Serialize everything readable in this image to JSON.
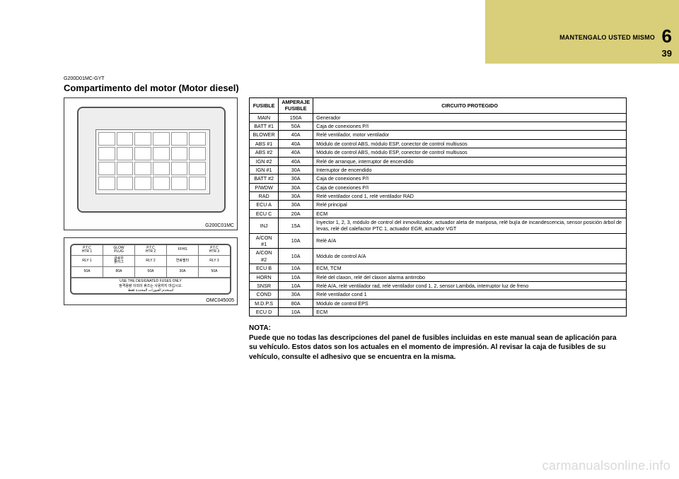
{
  "banner": {
    "chapter": "MANTENGALO USTED MISMO",
    "num": "6",
    "page": "39"
  },
  "code": "G200D01MC-GYT",
  "title": "Compartimento del motor (Motor diesel)",
  "fig1_label": "G200C01MC",
  "fig2_label": "OMC045005",
  "relay": {
    "row1": [
      "P.T.C\nHTR 1",
      "GLOW\nPLUG",
      "P.T.C\nHTR 2",
      "FFHS",
      "P.T.C\nHTR 3"
    ],
    "row2": [
      "RLY 1",
      "글로우\n플러그",
      "RLY 2",
      "연료필터",
      "RLY 3"
    ],
    "row3": [
      "50A",
      "80A",
      "50A",
      "30A",
      "50A"
    ],
    "foot": "USE THE DESIGNATED FUSES ONLY\n정격용량 이외의 휴즈는 사용하지 마십시오.\nاستخدم الفيوزات المحددة فقط"
  },
  "table": {
    "headers": [
      "FUSIBLE",
      "AMPERAJE\nFUSIBLE",
      "CIRCUITO PROTEGIDO"
    ],
    "rows": [
      [
        "MAIN",
        "150A",
        "Generador"
      ],
      [
        "BATT #1",
        "50A",
        "Caja de conexiones P/I"
      ],
      [
        "BLOWER",
        "40A",
        "Relé ventilador, motor ventilador"
      ],
      [
        "ABS #1",
        "40A",
        "Módulo de control ABS, módulo ESP, conector de control multiusos"
      ],
      [
        "ABS #2",
        "40A",
        "Módulo de control ABS, módulo ESP, conector de control multiusos"
      ],
      [
        "IGN #2",
        "40A",
        "Relé de arranque, interruptor de encendido"
      ],
      [
        "IGN #1",
        "30A",
        "Interruptor de encendido"
      ],
      [
        "BATT #2",
        "30A",
        "Caja de conexiones P/I"
      ],
      [
        "P/WDW",
        "30A",
        "Caja de conexiones P/I"
      ],
      [
        "RAD",
        "30A",
        "Relé ventilador cond 1, relé ventilador RAD"
      ],
      [
        "ECU A",
        "30A",
        "Relé principal"
      ],
      [
        "ECU C",
        "20A",
        "ECM"
      ],
      [
        "INJ",
        "15A",
        "Inyector 1, 2, 3, módulo de control del inmovilizador, actuador aleta de mariposa, relé bujía de incandescencia, sensor posición árbol de levas, relé del calefactor PTC 1, actuador EGR, actuador VGT"
      ],
      [
        "A/CON #1",
        "10A",
        "Relé A/A"
      ],
      [
        "A/CON #2",
        "10A",
        "Módulo de control A/A"
      ],
      [
        "ECU B",
        "10A",
        "ECM, TCM"
      ],
      [
        "HORN",
        "10A",
        "Relé del claxon, relé del claxon alarma antirrobo"
      ],
      [
        "SNSR",
        "10A",
        "Relé A/A, relé ventilador rad, relé ventilador cond 1, 2, sensor Lambda, interruptor luz de freno"
      ],
      [
        "COND",
        "30A",
        "Relé ventilador cond 1"
      ],
      [
        "M.D.P.S",
        "80A",
        "Módulo de control EPS"
      ],
      [
        "ECU D",
        "10A",
        "ECM"
      ]
    ]
  },
  "nota_title": "NOTA:",
  "nota_body": "Puede que no todas las descripciones del panel de fusibles incluidas en este manual sean de aplicación para su vehículo. Estos datos son los actuales en el momento de impresión. Al revisar la caja de fusibles de su vehículo, consulte el adhesivo que se encuentra en la misma.",
  "watermark": "carmanualsonline.info"
}
